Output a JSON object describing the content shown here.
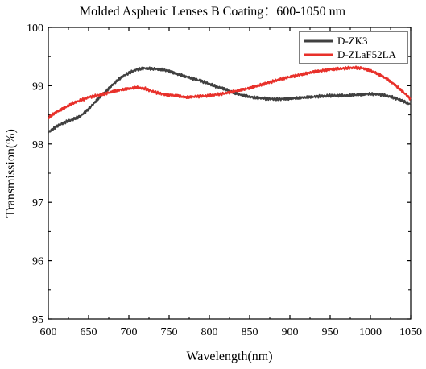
{
  "chart_data": {
    "type": "line",
    "title": "Molded Aspheric Lenses B Coating：600-1050 nm",
    "xlabel": "Wavelength(nm)",
    "ylabel": "Transmission(%)",
    "xlim": [
      600,
      1050
    ],
    "ylim": [
      95,
      100
    ],
    "x_ticks": [
      "600",
      "650",
      "700",
      "750",
      "800",
      "850",
      "900",
      "950",
      "1000",
      "1050"
    ],
    "y_ticks": [
      "95",
      "96",
      "97",
      "98",
      "99",
      "100"
    ],
    "grid": false,
    "legend_position": "top-right",
    "series": [
      {
        "name": "D-ZK3",
        "color": "#404040",
        "x": [
          600,
          610,
          620,
          630,
          640,
          650,
          660,
          670,
          680,
          690,
          700,
          710,
          720,
          730,
          740,
          750,
          760,
          770,
          780,
          790,
          800,
          810,
          820,
          830,
          840,
          850,
          860,
          870,
          880,
          890,
          900,
          910,
          920,
          930,
          940,
          950,
          960,
          970,
          980,
          990,
          1000,
          1010,
          1020,
          1030,
          1040,
          1050
        ],
        "y": [
          98.2,
          98.3,
          98.37,
          98.42,
          98.48,
          98.6,
          98.75,
          98.88,
          99.02,
          99.14,
          99.22,
          99.28,
          99.3,
          99.29,
          99.28,
          99.25,
          99.2,
          99.16,
          99.12,
          99.08,
          99.03,
          98.98,
          98.94,
          98.88,
          98.84,
          98.81,
          98.79,
          98.78,
          98.77,
          98.77,
          98.78,
          98.79,
          98.8,
          98.81,
          98.82,
          98.83,
          98.83,
          98.83,
          98.84,
          98.85,
          98.86,
          98.85,
          98.83,
          98.79,
          98.74,
          98.68
        ]
      },
      {
        "name": "D-ZLaF52LA",
        "color": "#e8302a",
        "x": [
          600,
          610,
          620,
          630,
          640,
          650,
          660,
          670,
          680,
          690,
          700,
          710,
          720,
          730,
          740,
          750,
          760,
          770,
          780,
          790,
          800,
          810,
          820,
          830,
          840,
          850,
          860,
          870,
          880,
          890,
          900,
          910,
          920,
          930,
          940,
          950,
          960,
          970,
          980,
          990,
          1000,
          1010,
          1020,
          1030,
          1040,
          1050
        ],
        "y": [
          98.45,
          98.55,
          98.62,
          98.7,
          98.75,
          98.8,
          98.83,
          98.86,
          98.9,
          98.93,
          98.95,
          98.97,
          98.95,
          98.9,
          98.86,
          98.84,
          98.83,
          98.8,
          98.81,
          98.82,
          98.83,
          98.85,
          98.87,
          98.9,
          98.93,
          98.96,
          99.0,
          99.04,
          99.08,
          99.12,
          99.15,
          99.18,
          99.21,
          99.24,
          99.26,
          99.28,
          99.29,
          99.3,
          99.31,
          99.3,
          99.26,
          99.2,
          99.12,
          99.02,
          98.9,
          98.77
        ]
      }
    ]
  }
}
